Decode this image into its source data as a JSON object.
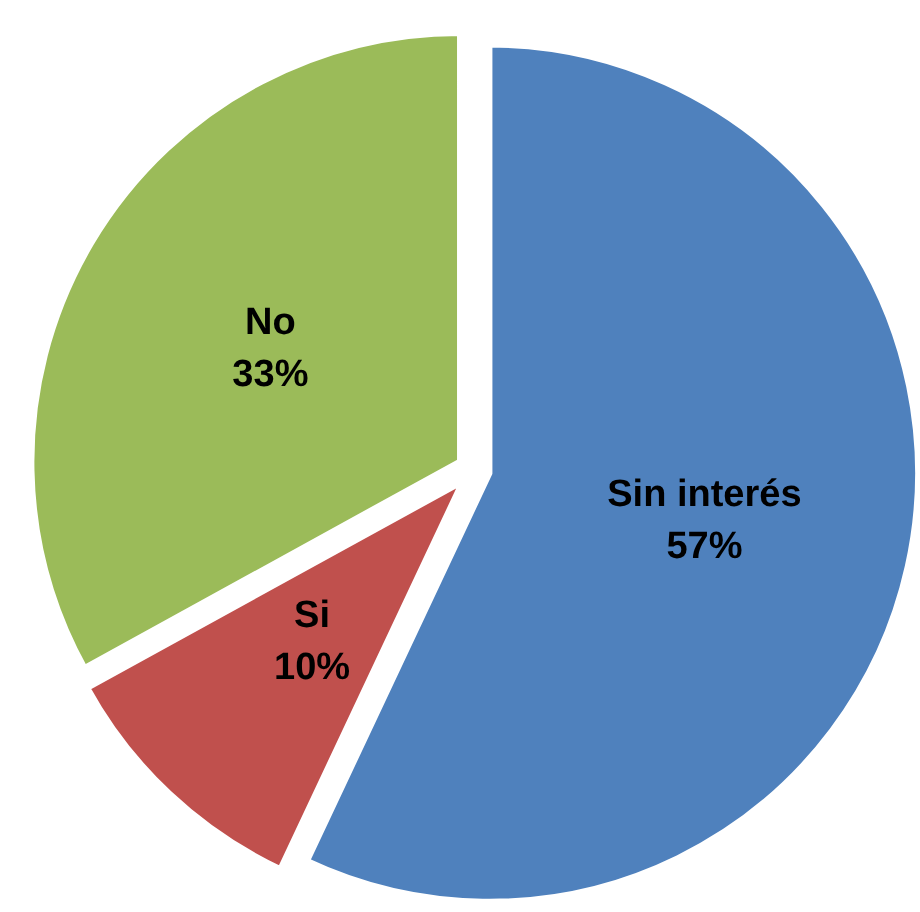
{
  "chart_data": {
    "type": "pie",
    "categories": [
      "Sin interés",
      "Si",
      "No"
    ],
    "values": [
      57,
      10,
      33
    ],
    "colors": [
      "#4f81bd",
      "#c0504d",
      "#9bbb59"
    ],
    "value_labels": [
      "57%",
      "10%",
      "33%"
    ],
    "legend": false
  }
}
